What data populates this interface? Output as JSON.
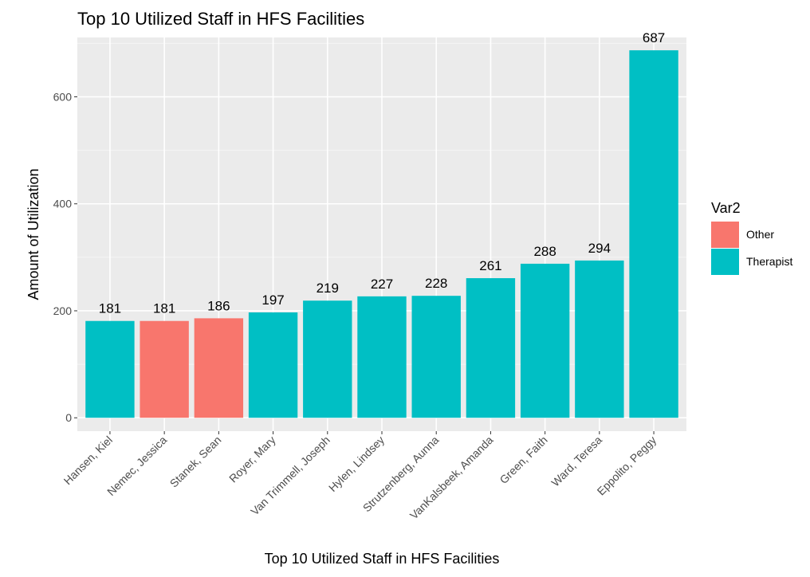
{
  "chart_data": {
    "type": "bar",
    "title": "Top 10 Utilized Staff in HFS Facilities",
    "xlabel": "Top 10 Utilized Staff in HFS Facilities",
    "ylabel": "Amount of Utilization",
    "ylim": [
      -25,
      711
    ],
    "yticks": [
      0,
      200,
      400,
      600
    ],
    "grid": true,
    "legend_position": "right",
    "legend": {
      "title": "Var2",
      "entries": [
        {
          "label": "Other",
          "color": "#F8766D"
        },
        {
          "label": "Therapist",
          "color": "#00BFC4"
        }
      ]
    },
    "categories": [
      "Hansen, Kiel",
      "Nemec, Jessica",
      "Stanek, Sean",
      "Royer, Mary",
      "Van Trimmell, Joseph",
      "Hylen, Lindsey",
      "Strutzenberg, Aunna",
      "VanKalsbeek, Amanda",
      "Green, Faith",
      "Ward, Teresa",
      "Eppolito, Peggy"
    ],
    "values": [
      181,
      181,
      186,
      197,
      219,
      227,
      228,
      261,
      288,
      294,
      687
    ],
    "groups": [
      "Therapist",
      "Other",
      "Other",
      "Therapist",
      "Therapist",
      "Therapist",
      "Therapist",
      "Therapist",
      "Therapist",
      "Therapist",
      "Therapist"
    ]
  }
}
